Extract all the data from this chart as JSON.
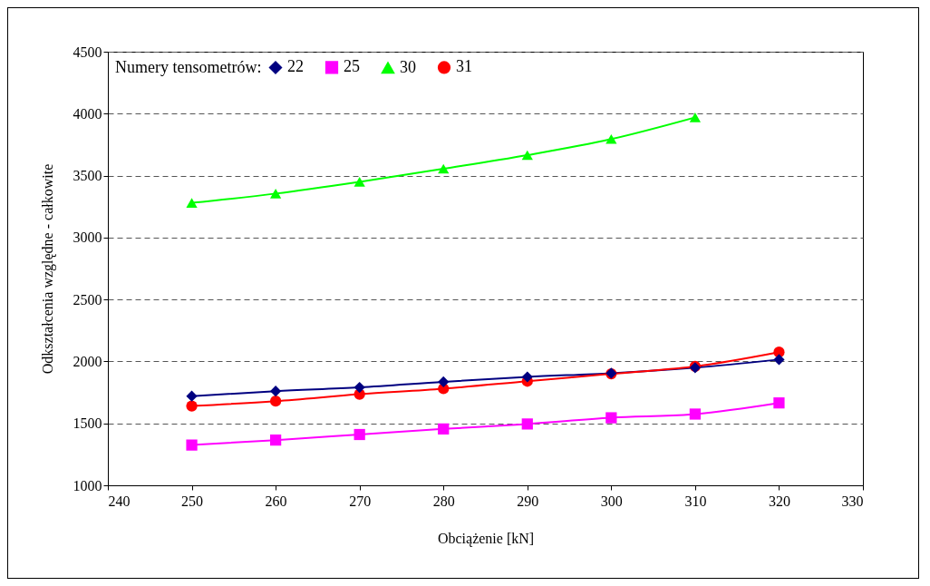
{
  "chart_data": {
    "type": "line",
    "xlabel": "Obciążenie [kN]",
    "ylabel": "Odkształcenia względne - całkowite",
    "legend_title": "Numery tensometrów:",
    "legend": "top left",
    "grid": "y",
    "line_style": "solid",
    "x": [
      250,
      260,
      270,
      280,
      290,
      300,
      310,
      320
    ],
    "xlim": [
      240,
      330
    ],
    "xticks": [
      240,
      250,
      260,
      270,
      280,
      290,
      300,
      310,
      320,
      330
    ],
    "ylim": [
      1000,
      4500
    ],
    "yticks": [
      1000,
      1500,
      2000,
      2500,
      3000,
      3500,
      4000,
      4500
    ],
    "series": [
      {
        "name": "22",
        "color": "#000080",
        "marker": "diamond",
        "values": [
          1720,
          1760,
          1790,
          1835,
          1875,
          1905,
          1950,
          2015
        ]
      },
      {
        "name": "25",
        "color": "#ff00ff",
        "marker": "square",
        "values": [
          1325,
          1365,
          1410,
          1455,
          1495,
          1545,
          1575,
          1665
        ]
      },
      {
        "name": "30",
        "color": "#00ff00",
        "marker": "triangle",
        "values": [
          3280,
          3355,
          3450,
          3555,
          3665,
          3795,
          3970,
          null
        ]
      },
      {
        "name": "31",
        "color": "#ff0000",
        "marker": "circle",
        "values": [
          1640,
          1680,
          1735,
          1780,
          1840,
          1900,
          1960,
          2075
        ]
      }
    ]
  }
}
